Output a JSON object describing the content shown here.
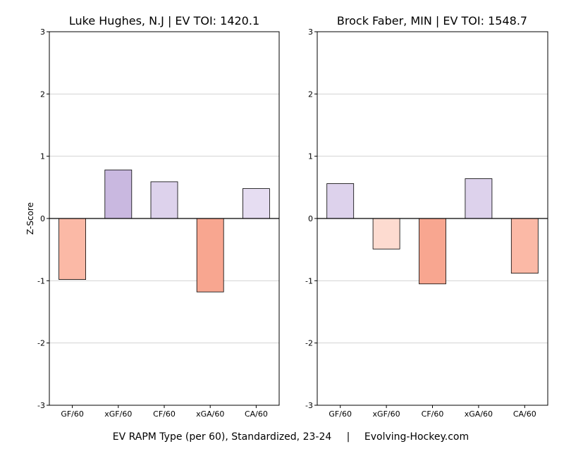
{
  "figure": {
    "caption_left": "EV RAPM Type (per 60), Standardized, 23-24",
    "caption_sep": "|",
    "caption_right": "Evolving-Hockey.com",
    "ylabel": "Z-Score"
  },
  "colors": {
    "purple_strong": "#c9b8e0",
    "purple_light": "#ddd2ec",
    "purple_faint": "#e6ddf2",
    "salmon_strong": "#f8a690",
    "salmon_mid": "#fbb9a6",
    "salmon_light": "#fddbd0",
    "grid": "#d3d3d3",
    "axis": "#000000"
  },
  "chart_data": [
    {
      "type": "bar",
      "title": "Luke Hughes, N.J  |  EV TOI: 1420.1",
      "categories": [
        "GF/60",
        "xGF/60",
        "CF/60",
        "xGA/60",
        "CA/60"
      ],
      "values": [
        -0.98,
        0.78,
        0.59,
        -1.18,
        0.48
      ],
      "fills": [
        "salmon_mid",
        "purple_strong",
        "purple_light",
        "salmon_strong",
        "purple_faint"
      ],
      "ylabel": "Z-Score",
      "ylim": [
        -3,
        3
      ],
      "yticks": [
        "-3",
        "-2",
        "-1",
        "0",
        "1",
        "2",
        "3"
      ],
      "grid": true
    },
    {
      "type": "bar",
      "title": "Brock Faber, MIN  |  EV TOI: 1548.7",
      "categories": [
        "GF/60",
        "xGF/60",
        "CF/60",
        "xGA/60",
        "CA/60"
      ],
      "values": [
        0.56,
        -0.49,
        -1.05,
        0.64,
        -0.88
      ],
      "fills": [
        "purple_light",
        "salmon_light",
        "salmon_strong",
        "purple_light",
        "salmon_mid"
      ],
      "ylim": [
        -3,
        3
      ],
      "yticks": [
        "-3",
        "-2",
        "-1",
        "0",
        "1",
        "2",
        "3"
      ],
      "grid": true
    }
  ]
}
